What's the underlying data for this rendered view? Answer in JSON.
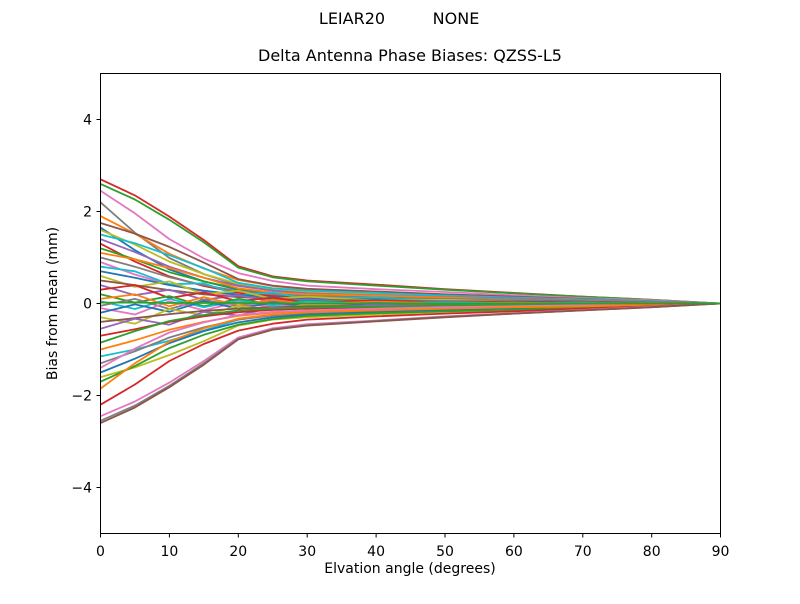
{
  "figure": {
    "background": "#ffffff"
  },
  "header": {
    "suptitle_left": "LEIAR20",
    "suptitle_right": "NONE"
  },
  "chart_data": {
    "type": "line",
    "suptitle": "LEIAR20        NONE",
    "title": "Delta Antenna Phase Biases: QZSS-L5",
    "xlabel": "Elvation angle (degrees)",
    "ylabel": "Bias from mean (mm)",
    "xlim": [
      0,
      90
    ],
    "ylim": [
      -5,
      5
    ],
    "grid": false,
    "legend": "none",
    "xticks": [
      "0",
      "10",
      "20",
      "30",
      "40",
      "50",
      "60",
      "70",
      "80",
      "90"
    ],
    "yticks": [
      "4",
      "2",
      "0",
      "−2",
      "−4"
    ],
    "xtick_values": [
      0,
      10,
      20,
      30,
      40,
      50,
      60,
      70,
      80,
      90
    ],
    "ytick_values": [
      4,
      2,
      0,
      -2,
      -4
    ],
    "x": [
      0,
      5,
      10,
      15,
      20,
      25,
      30,
      40,
      50,
      60,
      70,
      80,
      90
    ],
    "series": [
      {
        "color": "#d62728",
        "y": [
          2.7,
          2.35,
          1.89,
          1.38,
          0.81,
          0.59,
          0.5,
          0.41,
          0.31,
          0.23,
          0.15,
          0.08,
          0
        ]
      },
      {
        "color": "#2ca02c",
        "y": [
          2.6,
          2.26,
          1.82,
          1.33,
          0.78,
          0.57,
          0.48,
          0.39,
          0.3,
          0.22,
          0.15,
          0.08,
          0
        ]
      },
      {
        "color": "#e377c2",
        "y": [
          2.45,
          1.96,
          1.4,
          0.98,
          0.66,
          0.49,
          0.39,
          0.31,
          0.25,
          0.18,
          0.12,
          0.07,
          0
        ]
      },
      {
        "color": "#7f7f7f",
        "y": [
          2.2,
          1.54,
          0.99,
          0.64,
          0.4,
          0.29,
          0.23,
          0.18,
          0.13,
          0.1,
          0.07,
          0.04,
          0
        ]
      },
      {
        "color": "#ff7f0e",
        "y": [
          1.9,
          1.52,
          1.08,
          0.76,
          0.51,
          0.38,
          0.3,
          0.24,
          0.19,
          0.14,
          0.1,
          0.05,
          0
        ]
      },
      {
        "color": "#8c564b",
        "y": [
          1.75,
          1.52,
          1.23,
          0.89,
          0.53,
          0.39,
          0.32,
          0.26,
          0.2,
          0.15,
          0.1,
          0.05,
          0
        ]
      },
      {
        "color": "#1f77b4",
        "y": [
          1.65,
          1.16,
          0.74,
          0.48,
          0.3,
          0.21,
          0.17,
          0.13,
          0.1,
          0.07,
          0.05,
          0.03,
          0
        ]
      },
      {
        "color": "#bcbd22",
        "y": [
          1.6,
          1.28,
          0.91,
          0.64,
          0.43,
          0.32,
          0.26,
          0.2,
          0.16,
          0.12,
          0.08,
          0.04,
          0
        ]
      },
      {
        "color": "#17becf",
        "y": [
          1.5,
          1.31,
          1.05,
          0.77,
          0.45,
          0.33,
          0.28,
          0.23,
          0.17,
          0.13,
          0.09,
          0.05,
          0
        ]
      },
      {
        "color": "#9467bd",
        "y": [
          1.4,
          1.12,
          0.8,
          0.56,
          0.38,
          0.28,
          0.22,
          0.18,
          0.14,
          0.11,
          0.07,
          0.04,
          0
        ]
      },
      {
        "color": "#d62728",
        "y": [
          1.3,
          0.91,
          0.59,
          0.38,
          0.23,
          0.17,
          0.14,
          0.1,
          0.08,
          0.06,
          0.04,
          0.02,
          0
        ]
      },
      {
        "color": "#2ca02c",
        "y": [
          1.2,
          0.96,
          0.68,
          0.48,
          0.32,
          0.24,
          0.19,
          0.15,
          0.12,
          0.09,
          0.06,
          0.03,
          0
        ]
      },
      {
        "color": "#ff7f0e",
        "y": [
          1.1,
          0.96,
          0.77,
          0.56,
          0.33,
          0.24,
          0.2,
          0.17,
          0.13,
          0.09,
          0.06,
          0.03,
          0
        ]
      },
      {
        "color": "#7f7f7f",
        "y": [
          1.0,
          0.8,
          0.57,
          0.4,
          0.27,
          0.2,
          0.16,
          0.13,
          0.1,
          0.08,
          0.05,
          0.03,
          0
        ]
      },
      {
        "color": "#e377c2",
        "y": [
          0.9,
          0.63,
          0.41,
          0.26,
          0.16,
          0.12,
          0.09,
          0.07,
          0.05,
          0.04,
          0.03,
          0.02,
          0
        ]
      },
      {
        "color": "#17becf",
        "y": [
          0.8,
          0.7,
          0.42,
          0.44,
          0.18,
          0.24,
          0.1,
          0.13,
          0.06,
          0.07,
          0.03,
          0.02,
          0
        ]
      },
      {
        "color": "#1f77b4",
        "y": [
          0.7,
          0.56,
          0.4,
          0.28,
          0.19,
          0.14,
          0.11,
          0.09,
          0.07,
          0.05,
          0.04,
          0.02,
          0
        ]
      },
      {
        "color": "#bcbd22",
        "y": [
          0.6,
          0.36,
          0.48,
          0.2,
          0.28,
          0.1,
          0.15,
          0.06,
          0.08,
          0.04,
          0.03,
          0.01,
          0
        ]
      },
      {
        "color": "#8c564b",
        "y": [
          0.5,
          0.4,
          0.29,
          0.2,
          0.14,
          0.1,
          0.08,
          0.06,
          0.05,
          0.04,
          0.03,
          0.01,
          0
        ]
      },
      {
        "color": "#9467bd",
        "y": [
          0.4,
          0.18,
          0.3,
          0.08,
          0.18,
          0.04,
          0.09,
          0.02,
          0.05,
          0.01,
          0.02,
          0.01,
          0
        ]
      },
      {
        "color": "#d62728",
        "y": [
          0.3,
          0.4,
          0.12,
          0.24,
          0.05,
          0.13,
          0.02,
          0.06,
          0.01,
          0.03,
          0.01,
          0.01,
          0
        ]
      },
      {
        "color": "#2ca02c",
        "y": [
          0.2,
          0.02,
          0.16,
          -0.06,
          0.1,
          -0.02,
          0.06,
          0.0,
          0.03,
          0.0,
          0.01,
          0.0,
          0
        ]
      },
      {
        "color": "#ff7f0e",
        "y": [
          0.1,
          0.2,
          -0.06,
          0.14,
          -0.04,
          0.08,
          -0.02,
          0.04,
          0.0,
          0.02,
          0.0,
          0.01,
          0
        ]
      },
      {
        "color": "#17becf",
        "y": [
          0.05,
          -0.12,
          0.1,
          -0.08,
          0.06,
          -0.04,
          0.04,
          -0.02,
          0.02,
          0.0,
          0.01,
          0.0,
          0
        ]
      },
      {
        "color": "#7f7f7f",
        "y": [
          -0.05,
          0.1,
          -0.12,
          0.08,
          -0.06,
          0.04,
          -0.04,
          0.02,
          -0.02,
          0.0,
          -0.01,
          0.0,
          0
        ]
      },
      {
        "color": "#e377c2",
        "y": [
          -0.1,
          -0.24,
          0.05,
          -0.15,
          0.03,
          -0.08,
          0.01,
          -0.04,
          0.0,
          -0.02,
          0.0,
          -0.01,
          0
        ]
      },
      {
        "color": "#1f77b4",
        "y": [
          -0.2,
          -0.02,
          -0.18,
          0.05,
          -0.11,
          0.02,
          -0.06,
          0.0,
          -0.03,
          0.0,
          -0.01,
          0.0,
          0
        ]
      },
      {
        "color": "#bcbd22",
        "y": [
          -0.3,
          -0.44,
          -0.12,
          -0.26,
          -0.05,
          -0.14,
          -0.02,
          -0.07,
          -0.01,
          -0.03,
          -0.01,
          -0.01,
          0
        ]
      },
      {
        "color": "#8c564b",
        "y": [
          -0.4,
          -0.32,
          -0.23,
          -0.16,
          -0.11,
          -0.08,
          -0.06,
          -0.05,
          -0.04,
          -0.03,
          -0.02,
          -0.01,
          0
        ]
      },
      {
        "color": "#9467bd",
        "y": [
          -0.55,
          -0.33,
          -0.46,
          -0.18,
          -0.26,
          -0.08,
          -0.12,
          -0.04,
          -0.06,
          -0.02,
          -0.03,
          -0.01,
          0
        ]
      },
      {
        "color": "#d62728",
        "y": [
          -0.7,
          -0.56,
          -0.4,
          -0.28,
          -0.19,
          -0.14,
          -0.11,
          -0.09,
          -0.07,
          -0.05,
          -0.04,
          -0.02,
          0
        ]
      },
      {
        "color": "#2ca02c",
        "y": [
          -0.85,
          -0.6,
          -0.38,
          -0.25,
          -0.15,
          -0.11,
          -0.09,
          -0.07,
          -0.05,
          -0.04,
          -0.03,
          -0.01,
          0
        ]
      },
      {
        "color": "#ff7f0e",
        "y": [
          -1.0,
          -0.8,
          -0.57,
          -0.4,
          -0.27,
          -0.2,
          -0.16,
          -0.13,
          -0.1,
          -0.08,
          -0.05,
          -0.03,
          0
        ]
      },
      {
        "color": "#17becf",
        "y": [
          -1.15,
          -1.0,
          -0.81,
          -0.59,
          -0.35,
          -0.25,
          -0.21,
          -0.17,
          -0.13,
          -0.1,
          -0.07,
          -0.03,
          0
        ]
      },
      {
        "color": "#7f7f7f",
        "y": [
          -1.3,
          -1.04,
          -0.74,
          -0.52,
          -0.35,
          -0.26,
          -0.21,
          -0.16,
          -0.13,
          -0.1,
          -0.07,
          -0.04,
          0
        ]
      },
      {
        "color": "#e377c2",
        "y": [
          -1.4,
          -0.98,
          -0.63,
          -0.41,
          -0.25,
          -0.18,
          -0.15,
          -0.11,
          -0.08,
          -0.06,
          -0.04,
          -0.02,
          0
        ]
      },
      {
        "color": "#1f77b4",
        "y": [
          -1.5,
          -1.2,
          -0.86,
          -0.6,
          -0.41,
          -0.3,
          -0.24,
          -0.19,
          -0.15,
          -0.11,
          -0.08,
          -0.04,
          0
        ]
      },
      {
        "color": "#bcbd22",
        "y": [
          -1.6,
          -1.39,
          -1.12,
          -0.82,
          -0.48,
          -0.35,
          -0.3,
          -0.24,
          -0.18,
          -0.14,
          -0.09,
          -0.05,
          0
        ]
      },
      {
        "color": "#2ca02c",
        "y": [
          -1.7,
          -1.36,
          -0.97,
          -0.68,
          -0.46,
          -0.34,
          -0.27,
          -0.21,
          -0.17,
          -0.13,
          -0.09,
          -0.05,
          0
        ]
      },
      {
        "color": "#ff7f0e",
        "y": [
          -1.85,
          -1.3,
          -0.83,
          -0.54,
          -0.33,
          -0.24,
          -0.19,
          -0.15,
          -0.11,
          -0.08,
          -0.06,
          -0.03,
          0
        ]
      },
      {
        "color": "#d62728",
        "y": [
          -2.2,
          -1.76,
          -1.25,
          -0.88,
          -0.59,
          -0.44,
          -0.35,
          -0.28,
          -0.22,
          -0.17,
          -0.11,
          -0.06,
          0
        ]
      },
      {
        "color": "#e377c2",
        "y": [
          -2.45,
          -2.13,
          -1.72,
          -1.25,
          -0.74,
          -0.54,
          -0.45,
          -0.37,
          -0.28,
          -0.21,
          -0.14,
          -0.07,
          0
        ]
      },
      {
        "color": "#7f7f7f",
        "y": [
          -2.55,
          -2.22,
          -1.79,
          -1.3,
          -0.77,
          -0.56,
          -0.47,
          -0.38,
          -0.29,
          -0.22,
          -0.15,
          -0.08,
          0
        ]
      },
      {
        "color": "#8c564b",
        "y": [
          -2.6,
          -2.26,
          -1.82,
          -1.33,
          -0.78,
          -0.57,
          -0.48,
          -0.39,
          -0.3,
          -0.22,
          -0.15,
          -0.08,
          0
        ]
      },
      {
        "color": "#2ca02c",
        "y": [
          0.02,
          0.02,
          0.01,
          0.01,
          0.01,
          0.0,
          0.0,
          0.0,
          0.0,
          0.0,
          0.0,
          0.0,
          0
        ]
      }
    ]
  }
}
